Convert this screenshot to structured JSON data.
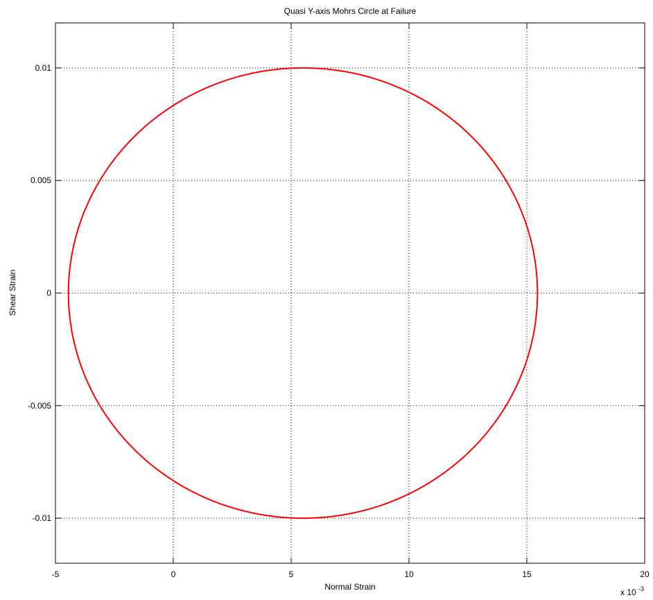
{
  "chart_data": {
    "type": "line",
    "title": "Quasi Y-axis Mohrs Circle at Failure",
    "xlabel": "Normal Strain",
    "ylabel": "Shear Strain",
    "x_multiplier_base": "x 10",
    "x_multiplier_exp": "-3",
    "xlim": [
      -5,
      20
    ],
    "ylim": [
      -0.012,
      0.012
    ],
    "xticks": [
      -5,
      0,
      5,
      10,
      15,
      20
    ],
    "xtick_labels": [
      "-5",
      "0",
      "5",
      "10",
      "15",
      "20"
    ],
    "yticks": [
      -0.01,
      -0.005,
      0,
      0.005,
      0.01
    ],
    "ytick_labels": [
      "-0.01",
      "-0.005",
      "0",
      "0.005",
      "0.01"
    ],
    "grid": true,
    "series": [
      {
        "color": "#ff0000",
        "shape": "circle",
        "center": [
          5.5,
          0
        ],
        "radius_x": 9.95,
        "radius_y": 0.01
      }
    ]
  }
}
